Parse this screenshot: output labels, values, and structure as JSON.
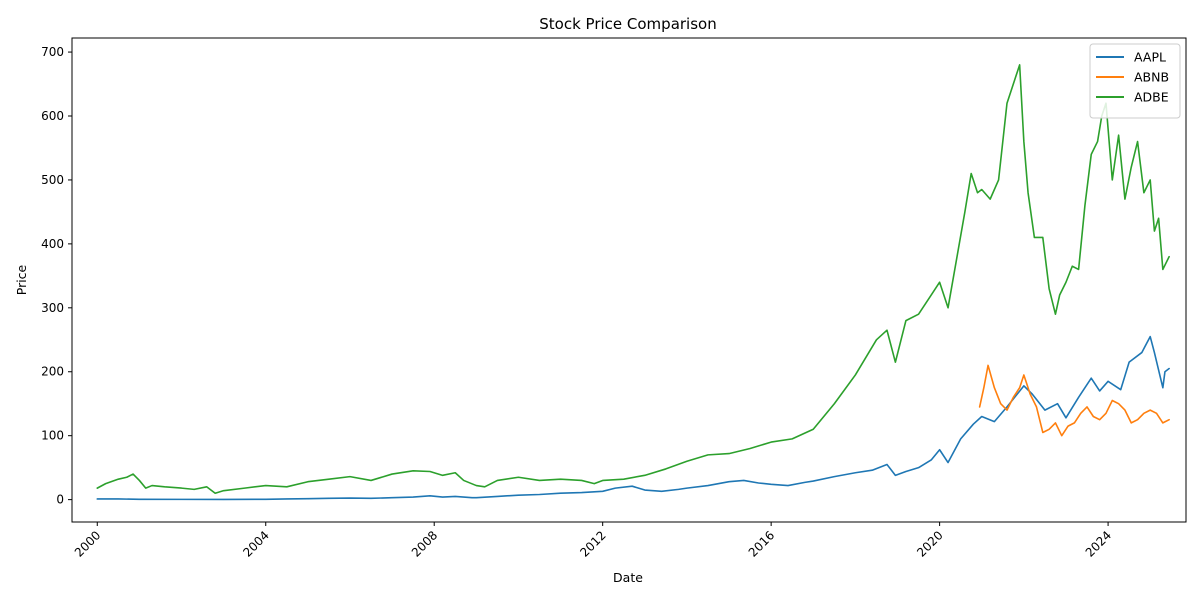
{
  "chart_data": {
    "type": "line",
    "title": "Stock Price Comparison",
    "xlabel": "Date",
    "ylabel": "Price",
    "xlim": [
      1999.4,
      2025.85
    ],
    "ylim": [
      -35,
      722
    ],
    "x_ticks": [
      2000,
      2004,
      2008,
      2012,
      2016,
      2020,
      2024
    ],
    "x_tick_labels": [
      "2000",
      "2004",
      "2008",
      "2012",
      "2016",
      "2020",
      "2024"
    ],
    "y_ticks": [
      0,
      100,
      200,
      300,
      400,
      500,
      600,
      700
    ],
    "y_tick_labels": [
      "0",
      "100",
      "200",
      "300",
      "400",
      "500",
      "600",
      "700"
    ],
    "grid": false,
    "legend_position": "top-right",
    "series": [
      {
        "name": "AAPL",
        "color": "#1f77b4",
        "x": [
          2000.0,
          2000.5,
          2001.0,
          2002.0,
          2003.0,
          2004.0,
          2004.5,
          2005.0,
          2005.5,
          2006.0,
          2006.5,
          2007.0,
          2007.5,
          2007.9,
          2008.2,
          2008.5,
          2008.9,
          2009.0,
          2009.5,
          2010.0,
          2010.5,
          2011.0,
          2011.5,
          2012.0,
          2012.3,
          2012.7,
          2013.0,
          2013.4,
          2013.8,
          2014.0,
          2014.5,
          2015.0,
          2015.35,
          2015.7,
          2016.0,
          2016.4,
          2016.8,
          2017.0,
          2017.5,
          2018.0,
          2018.4,
          2018.75,
          2018.95,
          2019.2,
          2019.5,
          2019.8,
          2020.0,
          2020.2,
          2020.5,
          2020.8,
          2021.0,
          2021.3,
          2021.6,
          2022.0,
          2022.2,
          2022.5,
          2022.8,
          2023.0,
          2023.3,
          2023.6,
          2023.8,
          2024.0,
          2024.3,
          2024.5,
          2024.8,
          2025.0,
          2025.1,
          2025.3,
          2025.35,
          2025.45
        ],
        "y": [
          1,
          1,
          0.5,
          0.4,
          0.3,
          0.5,
          1,
          1.5,
          2,
          2.5,
          2,
          3,
          4,
          6,
          4,
          5,
          3,
          3,
          5,
          7,
          8,
          10,
          11,
          13,
          18,
          21,
          15,
          13,
          16,
          18,
          22,
          28,
          30,
          26,
          24,
          22,
          27,
          29,
          36,
          42,
          46,
          55,
          38,
          44,
          50,
          62,
          78,
          58,
          95,
          118,
          130,
          122,
          145,
          178,
          165,
          140,
          150,
          128,
          160,
          190,
          170,
          185,
          172,
          215,
          230,
          255,
          230,
          175,
          200,
          205
        ]
      },
      {
        "name": "ABNB",
        "color": "#ff7f0e",
        "x": [
          2020.95,
          2021.05,
          2021.15,
          2021.3,
          2021.45,
          2021.6,
          2021.75,
          2021.9,
          2022.0,
          2022.15,
          2022.3,
          2022.45,
          2022.6,
          2022.75,
          2022.9,
          2023.05,
          2023.2,
          2023.35,
          2023.5,
          2023.65,
          2023.8,
          2023.95,
          2024.1,
          2024.25,
          2024.4,
          2024.55,
          2024.7,
          2024.85,
          2025.0,
          2025.15,
          2025.3,
          2025.45
        ],
        "y": [
          145,
          175,
          210,
          175,
          150,
          140,
          160,
          175,
          195,
          165,
          145,
          105,
          110,
          120,
          100,
          115,
          120,
          135,
          145,
          130,
          125,
          135,
          155,
          150,
          140,
          120,
          125,
          135,
          140,
          135,
          120,
          125
        ]
      },
      {
        "name": "ADBE",
        "color": "#2ca02c",
        "x": [
          2000.0,
          2000.2,
          2000.5,
          2000.7,
          2000.85,
          2001.0,
          2001.15,
          2001.3,
          2001.6,
          2002.0,
          2002.3,
          2002.6,
          2002.8,
          2003.0,
          2003.5,
          2004.0,
          2004.5,
          2005.0,
          2005.5,
          2006.0,
          2006.5,
          2007.0,
          2007.5,
          2007.9,
          2008.2,
          2008.5,
          2008.7,
          2009.0,
          2009.2,
          2009.5,
          2010.0,
          2010.5,
          2011.0,
          2011.5,
          2011.8,
          2012.0,
          2012.5,
          2013.0,
          2013.5,
          2014.0,
          2014.5,
          2015.0,
          2015.5,
          2016.0,
          2016.5,
          2017.0,
          2017.5,
          2018.0,
          2018.5,
          2018.75,
          2018.95,
          2019.2,
          2019.5,
          2019.8,
          2020.0,
          2020.2,
          2020.4,
          2020.6,
          2020.75,
          2020.9,
          2021.0,
          2021.2,
          2021.4,
          2021.6,
          2021.8,
          2021.9,
          2022.0,
          2022.1,
          2022.25,
          2022.45,
          2022.6,
          2022.75,
          2022.85,
          2023.0,
          2023.15,
          2023.3,
          2023.45,
          2023.6,
          2023.75,
          2023.85,
          2023.95,
          2024.1,
          2024.25,
          2024.4,
          2024.55,
          2024.7,
          2024.85,
          2025.0,
          2025.1,
          2025.2,
          2025.3,
          2025.45
        ],
        "y": [
          18,
          25,
          32,
          35,
          40,
          30,
          18,
          22,
          20,
          18,
          16,
          20,
          10,
          14,
          18,
          22,
          20,
          28,
          32,
          36,
          30,
          40,
          45,
          44,
          38,
          42,
          30,
          22,
          20,
          30,
          35,
          30,
          32,
          30,
          25,
          30,
          32,
          38,
          48,
          60,
          70,
          72,
          80,
          90,
          95,
          110,
          150,
          195,
          250,
          265,
          215,
          280,
          290,
          320,
          340,
          300,
          375,
          450,
          510,
          480,
          485,
          470,
          500,
          620,
          660,
          680,
          560,
          480,
          410,
          410,
          330,
          290,
          320,
          340,
          365,
          360,
          460,
          540,
          560,
          600,
          620,
          500,
          570,
          470,
          520,
          560,
          480,
          500,
          420,
          440,
          360,
          380
        ]
      }
    ]
  }
}
